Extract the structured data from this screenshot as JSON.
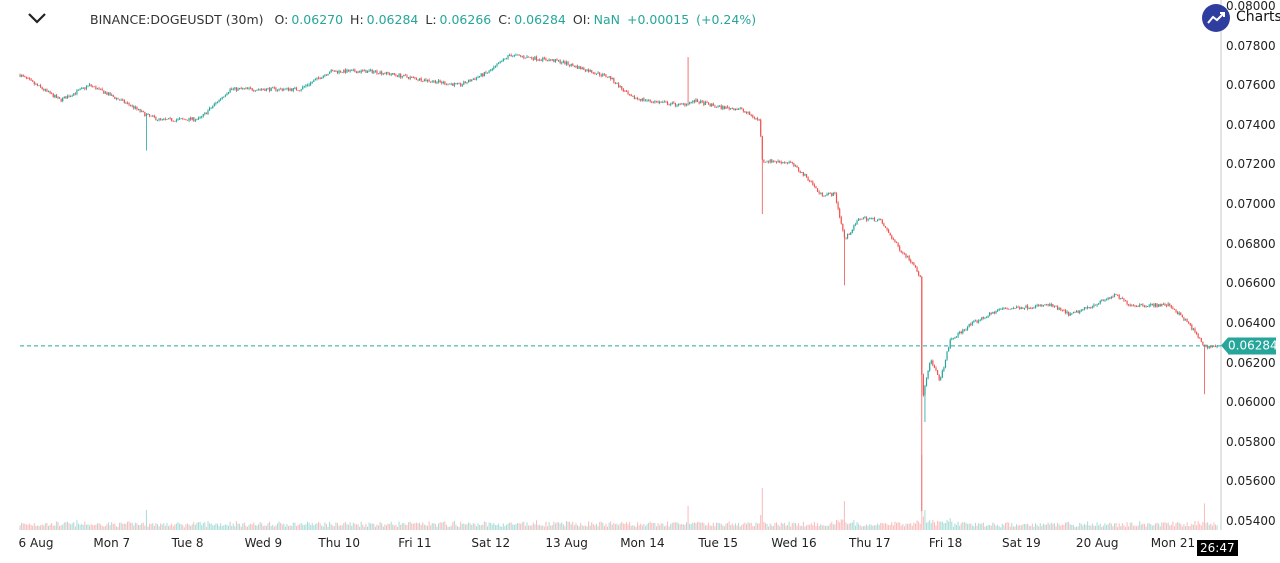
{
  "header": {
    "symbol": "BINANCE:DOGEUSDT (30m)",
    "o_label": "O:",
    "o": "0.06270",
    "h_label": "H:",
    "h": "0.06284",
    "l_label": "L:",
    "l": "0.06266",
    "c_label": "C:",
    "c": "0.06284",
    "oi_label": "OI:",
    "oi": "NaN",
    "change": "+0.00015",
    "change_pct": "(+0.24%)"
  },
  "branding": {
    "text": "Charts"
  },
  "countdown": "26:47",
  "colors": {
    "up": "#26a69a",
    "down": "#ef5350",
    "accent": "#26a69a",
    "logo": "#2f3e9e"
  },
  "chart_data": {
    "type": "candlestick",
    "interval": "30m",
    "ylim": [
      0.054,
      0.08
    ],
    "current_price": 0.06284,
    "current_price_label": "0.06284",
    "y_ticks": [
      {
        "value": 0.08,
        "label": "0.08000"
      },
      {
        "value": 0.078,
        "label": "0.07800"
      },
      {
        "value": 0.076,
        "label": "0.07600"
      },
      {
        "value": 0.074,
        "label": "0.07400"
      },
      {
        "value": 0.072,
        "label": "0.07200"
      },
      {
        "value": 0.07,
        "label": "0.07000"
      },
      {
        "value": 0.068,
        "label": "0.06800"
      },
      {
        "value": 0.066,
        "label": "0.06600"
      },
      {
        "value": 0.064,
        "label": "0.06400"
      },
      {
        "value": 0.062,
        "label": "0.06200"
      },
      {
        "value": 0.06,
        "label": "0.06000"
      },
      {
        "value": 0.058,
        "label": "0.05800"
      },
      {
        "value": 0.056,
        "label": "0.05600"
      },
      {
        "value": 0.054,
        "label": "0.05400"
      }
    ],
    "x_ticks": [
      {
        "day": 0,
        "label": "6 Aug"
      },
      {
        "day": 1,
        "label": "Mon 7"
      },
      {
        "day": 2,
        "label": "Tue 8"
      },
      {
        "day": 3,
        "label": "Wed 9"
      },
      {
        "day": 4,
        "label": "Thu 10"
      },
      {
        "day": 5,
        "label": "Fri 11"
      },
      {
        "day": 6,
        "label": "Sat 12"
      },
      {
        "day": 7,
        "label": "13 Aug"
      },
      {
        "day": 8,
        "label": "Mon 14"
      },
      {
        "day": 9,
        "label": "Tue 15"
      },
      {
        "day": 10,
        "label": "Wed 16"
      },
      {
        "day": 11,
        "label": "Thu 17"
      },
      {
        "day": 12,
        "label": "Fri 18"
      },
      {
        "day": 13,
        "label": "Sat 19"
      },
      {
        "day": 14,
        "label": "20 Aug"
      },
      {
        "day": 15,
        "label": "Mon 21"
      }
    ],
    "xlim_days": [
      -0.21,
      15.6
    ],
    "price_path": [
      [
        -0.21,
        0.07652
      ],
      [
        0.32,
        0.07525
      ],
      [
        0.71,
        0.076
      ],
      [
        1.24,
        0.075
      ],
      [
        1.45,
        0.0745
      ],
      [
        1.64,
        0.07424
      ],
      [
        2.16,
        0.0743
      ],
      [
        2.56,
        0.0758
      ],
      [
        3.48,
        0.0758
      ],
      [
        3.88,
        0.0767
      ],
      [
        4.47,
        0.0767
      ],
      [
        5.07,
        0.0763
      ],
      [
        5.59,
        0.076
      ],
      [
        5.99,
        0.0767
      ],
      [
        6.25,
        0.07753
      ],
      [
        6.91,
        0.0772
      ],
      [
        7.57,
        0.0764
      ],
      [
        7.84,
        0.0754
      ],
      [
        8.1,
        0.0752
      ],
      [
        8.5,
        0.075
      ],
      [
        8.7,
        0.0752
      ],
      [
        9.0,
        0.0749
      ],
      [
        9.29,
        0.0748
      ],
      [
        9.55,
        0.0742
      ],
      [
        9.58,
        0.0722
      ],
      [
        9.95,
        0.0721
      ],
      [
        10.21,
        0.0712
      ],
      [
        10.34,
        0.0705
      ],
      [
        10.54,
        0.0705
      ],
      [
        10.67,
        0.0682
      ],
      [
        10.87,
        0.0693
      ],
      [
        11.13,
        0.0692
      ],
      [
        11.4,
        0.0677
      ],
      [
        11.6,
        0.0669
      ],
      [
        11.67,
        0.0662
      ],
      [
        11.69,
        0.0601
      ],
      [
        11.8,
        0.0621
      ],
      [
        11.93,
        0.0611
      ],
      [
        12.06,
        0.0631
      ],
      [
        12.32,
        0.0639
      ],
      [
        12.72,
        0.0647
      ],
      [
        13.38,
        0.0649
      ],
      [
        13.65,
        0.0644
      ],
      [
        14.24,
        0.0654
      ],
      [
        14.44,
        0.0649
      ],
      [
        14.96,
        0.0649
      ],
      [
        15.22,
        0.0639
      ],
      [
        15.42,
        0.0628
      ],
      [
        15.6,
        0.06284
      ]
    ],
    "wicks": [
      {
        "day": 1.45,
        "low": 0.0727
      },
      {
        "day": 8.6,
        "high": 0.07742
      },
      {
        "day": 9.58,
        "low": 0.0695
      },
      {
        "day": 10.67,
        "low": 0.0659
      },
      {
        "day": 11.68,
        "low": 0.0545
      },
      {
        "day": 11.72,
        "low": 0.059
      },
      {
        "day": 15.42,
        "low": 0.0604
      }
    ]
  }
}
